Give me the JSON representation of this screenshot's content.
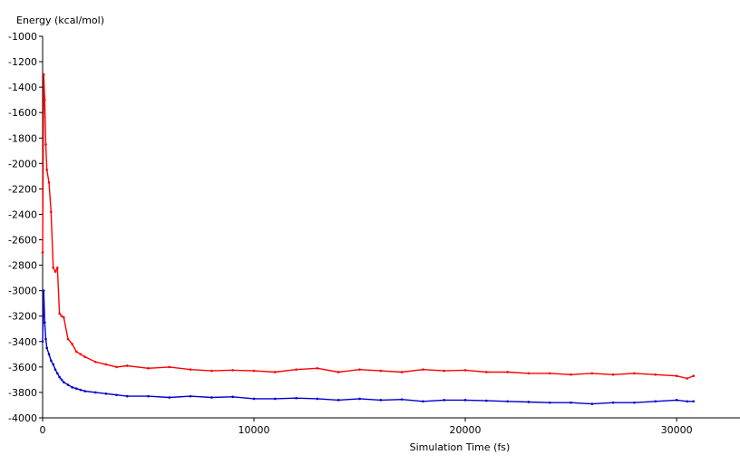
{
  "chart_data": {
    "type": "line",
    "title": "",
    "ylabel": "Energy (kcal/mol)",
    "xlabel": "Simulation Time (fs)",
    "xlim": [
      0,
      33000
    ],
    "ylim": [
      -4000,
      -1000
    ],
    "x_ticks": [
      0,
      10000,
      20000,
      30000
    ],
    "y_ticks": [
      -1000,
      -1200,
      -1400,
      -1600,
      -1800,
      -2000,
      -2200,
      -2400,
      -2600,
      -2800,
      -3000,
      -3200,
      -3400,
      -3600,
      -3800,
      -4000
    ],
    "x_tick_labels": [
      "0",
      "10000",
      "20000",
      "30000"
    ],
    "y_tick_labels": [
      "-1000",
      "-1200",
      "-1400",
      "-1600",
      "-1800",
      "-2000",
      "-2200",
      "-2400",
      "-2600",
      "-2800",
      "-3000",
      "-3200",
      "-3400",
      "-3600",
      "-3800",
      "-4000"
    ],
    "grid": false,
    "legend": "none",
    "series": [
      {
        "color": "#ff0000",
        "x": [
          0,
          50,
          100,
          150,
          200,
          300,
          400,
          500,
          600,
          700,
          800,
          900,
          1000,
          1200,
          1400,
          1600,
          1800,
          2000,
          2500,
          3000,
          3500,
          4000,
          5000,
          6000,
          7000,
          8000,
          9000,
          10000,
          11000,
          12000,
          13000,
          14000,
          15000,
          16000,
          17000,
          18000,
          19000,
          20000,
          21000,
          22000,
          23000,
          24000,
          25000,
          26000,
          27000,
          28000,
          29000,
          30000,
          30500,
          30800
        ],
        "values": [
          -2700,
          -1300,
          -1500,
          -1850,
          -2050,
          -2150,
          -2380,
          -2820,
          -2850,
          -2820,
          -3180,
          -3200,
          -3210,
          -3380,
          -3420,
          -3480,
          -3500,
          -3520,
          -3560,
          -3580,
          -3600,
          -3590,
          -3610,
          -3600,
          -3620,
          -3630,
          -3625,
          -3630,
          -3640,
          -3620,
          -3610,
          -3640,
          -3620,
          -3630,
          -3640,
          -3620,
          -3630,
          -3625,
          -3640,
          -3640,
          -3650,
          -3650,
          -3660,
          -3650,
          -3660,
          -3650,
          -3660,
          -3670,
          -3690,
          -3670
        ]
      },
      {
        "color": "#0000cc",
        "x": [
          0,
          50,
          100,
          150,
          200,
          300,
          400,
          500,
          600,
          700,
          800,
          900,
          1000,
          1200,
          1400,
          1600,
          1800,
          2000,
          2500,
          3000,
          3500,
          4000,
          5000,
          6000,
          7000,
          8000,
          9000,
          10000,
          11000,
          12000,
          13000,
          14000,
          15000,
          16000,
          17000,
          18000,
          19000,
          20000,
          21000,
          22000,
          23000,
          24000,
          25000,
          26000,
          27000,
          28000,
          29000,
          30000,
          30500,
          30800
        ],
        "values": [
          -3400,
          -3000,
          -3250,
          -3380,
          -3450,
          -3500,
          -3550,
          -3580,
          -3620,
          -3650,
          -3680,
          -3700,
          -3720,
          -3740,
          -3760,
          -3770,
          -3780,
          -3790,
          -3800,
          -3810,
          -3820,
          -3830,
          -3830,
          -3840,
          -3830,
          -3840,
          -3835,
          -3850,
          -3850,
          -3845,
          -3850,
          -3860,
          -3850,
          -3860,
          -3855,
          -3870,
          -3860,
          -3860,
          -3865,
          -3870,
          -3875,
          -3880,
          -3880,
          -3890,
          -3880,
          -3880,
          -3870,
          -3860,
          -3870,
          -3870
        ]
      }
    ]
  }
}
